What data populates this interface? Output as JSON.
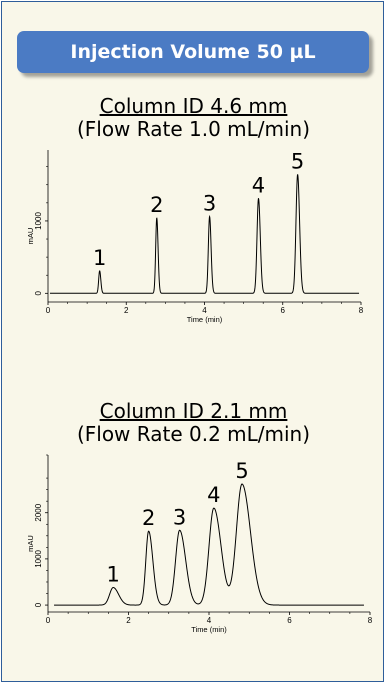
{
  "banner": {
    "title": "Injection Volume 50 µL"
  },
  "colors": {
    "banner": "#4b7bc4",
    "frame": "#2f5e9a",
    "background": "#f9f7e9",
    "trace": "#000000"
  },
  "chart_data": [
    {
      "type": "line",
      "title": "Column ID 4.6 mm",
      "subtitle": "(Flow Rate 1.0 mL/min)",
      "xlabel": "Time (min)",
      "ylabel": "mAU",
      "xlim": [
        0,
        8
      ],
      "ylim": [
        -120,
        1980
      ],
      "xticks": [
        0,
        2,
        4,
        6,
        8
      ],
      "yticks": [
        0,
        1000
      ],
      "grid": false,
      "baseline": 0,
      "peaks": [
        {
          "label": "1",
          "t": 1.32,
          "height": 310,
          "width": 0.025
        },
        {
          "label": "2",
          "t": 2.78,
          "height": 1040,
          "width": 0.028
        },
        {
          "label": "3",
          "t": 4.13,
          "height": 1060,
          "width": 0.032
        },
        {
          "label": "4",
          "t": 5.38,
          "height": 1310,
          "width": 0.038
        },
        {
          "label": "5",
          "t": 6.38,
          "height": 1640,
          "width": 0.042
        }
      ]
    },
    {
      "type": "line",
      "title": "Column ID 2.1 mm",
      "subtitle": "(Flow Rate 0.2 mL/min)",
      "xlabel": "Time (min)",
      "ylabel": "mAU",
      "xlim": [
        0,
        8
      ],
      "ylim": [
        -150,
        3250
      ],
      "xticks": [
        0,
        2,
        4,
        6,
        8
      ],
      "yticks": [
        0,
        1000,
        2000
      ],
      "grid": false,
      "baseline": 0,
      "peaks": [
        {
          "label": "1",
          "t": 1.62,
          "height": 380,
          "width": 0.09
        },
        {
          "label": "2",
          "t": 2.5,
          "height": 1600,
          "width": 0.07
        },
        {
          "label": "3",
          "t": 3.27,
          "height": 1620,
          "width": 0.1
        },
        {
          "label": "4",
          "t": 4.12,
          "height": 2100,
          "width": 0.12
        },
        {
          "label": "5",
          "t": 4.82,
          "height": 2620,
          "width": 0.14
        }
      ]
    }
  ]
}
